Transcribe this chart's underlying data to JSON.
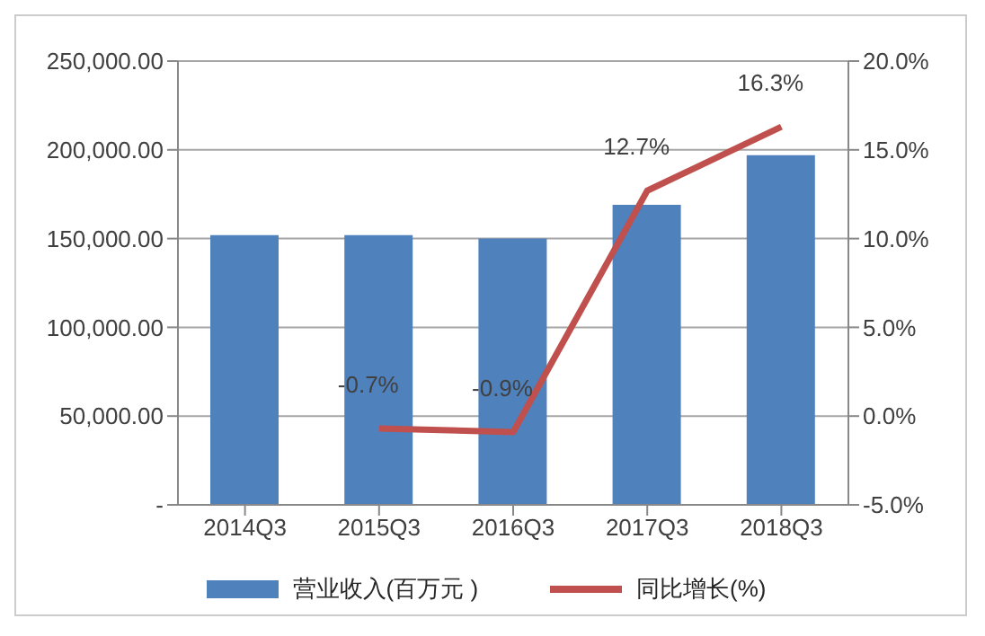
{
  "chart_data": {
    "type": "bar",
    "categories": [
      "2014Q3",
      "2015Q3",
      "2016Q3",
      "2017Q3",
      "2018Q3"
    ],
    "series": [
      {
        "name": "营业收入(百万元 )",
        "color": "#4f81bd",
        "values": [
          152000,
          152000,
          150000,
          169000,
          197000
        ]
      },
      {
        "name": "同比增长(%)",
        "type": "line",
        "axis": "y2",
        "color": "#c0504d",
        "values": [
          null,
          -0.7,
          -0.9,
          12.7,
          16.3
        ],
        "value_labels": [
          null,
          "-0.7%",
          "-0.9%",
          "12.7%",
          "16.3%"
        ]
      }
    ],
    "ylim": [
      0,
      250000
    ],
    "yticks": [
      {
        "value": 0,
        "label": "-"
      },
      {
        "value": 50000,
        "label": "50,000.00"
      },
      {
        "value": 100000,
        "label": "100,000.00"
      },
      {
        "value": 150000,
        "label": "150,000.00"
      },
      {
        "value": 200000,
        "label": "200,000.00"
      },
      {
        "value": 250000,
        "label": "250,000.00"
      }
    ],
    "y2lim": [
      -5,
      20
    ],
    "y2ticks": [
      {
        "value": -5,
        "label": "-5.0%"
      },
      {
        "value": 0,
        "label": "0.0%"
      },
      {
        "value": 5,
        "label": "5.0%"
      },
      {
        "value": 10,
        "label": "10.0%"
      },
      {
        "value": 15,
        "label": "15.0%"
      },
      {
        "value": 20,
        "label": "20.0%"
      }
    ],
    "grid": "y",
    "legend": "bottom",
    "marker": "none"
  }
}
